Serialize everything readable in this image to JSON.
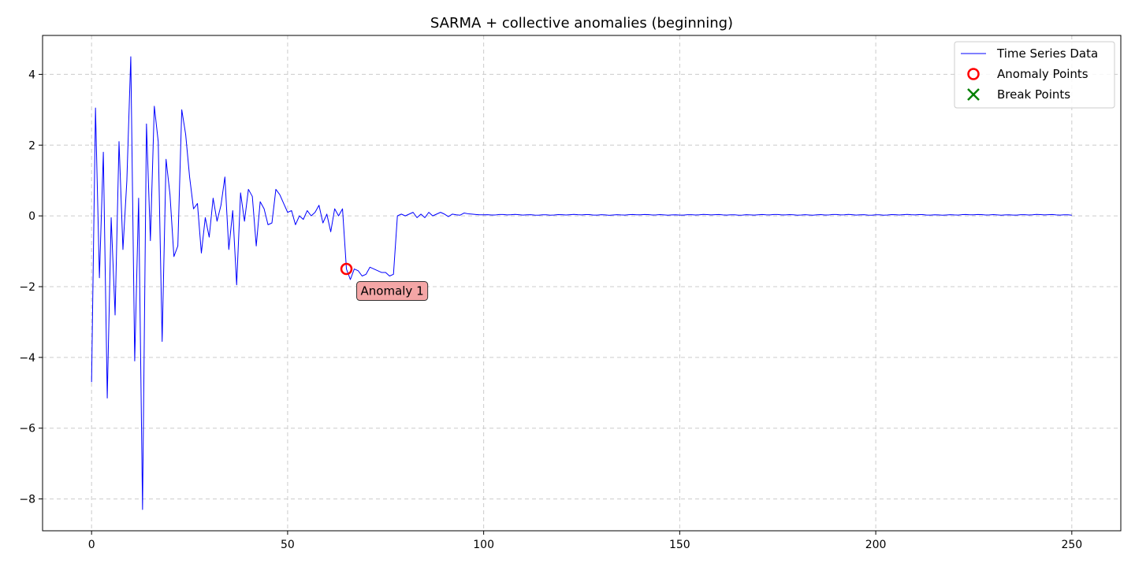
{
  "chart_data": {
    "type": "line",
    "title": "SARMA + collective anomalies (beginning)",
    "xlabel": "",
    "ylabel": "",
    "xlim": [
      -12.5,
      262.5
    ],
    "ylim": [
      -8.9,
      5.1
    ],
    "x_ticks": [
      0,
      50,
      100,
      150,
      200,
      250
    ],
    "y_ticks": [
      4,
      2,
      0,
      -2,
      -4,
      -6,
      -8
    ],
    "y_tick_labels": [
      "4",
      "2",
      "0",
      "−2",
      "−4",
      "−6",
      "−8"
    ],
    "grid": true,
    "legend_position": "top-right",
    "colors": {
      "series": "#0000ff",
      "anomaly": "#ff0000",
      "break": "#008000",
      "annotation_fill": "#f4a6a6"
    },
    "series": [
      {
        "name": "Time Series Data",
        "x_start": 0,
        "x_step": 1,
        "values": [
          -4.7,
          3.05,
          -1.75,
          1.8,
          -5.15,
          -0.05,
          -2.8,
          2.1,
          -0.95,
          1.0,
          4.5,
          -4.1,
          0.5,
          -8.3,
          2.6,
          -0.7,
          3.1,
          2.1,
          -3.55,
          1.6,
          0.6,
          -1.15,
          -0.85,
          3.0,
          2.3,
          1.1,
          0.2,
          0.35,
          -1.05,
          -0.05,
          -0.6,
          0.5,
          -0.15,
          0.3,
          1.1,
          -0.95,
          0.15,
          -1.95,
          0.65,
          -0.15,
          0.75,
          0.55,
          -0.85,
          0.4,
          0.2,
          -0.25,
          -0.2,
          0.75,
          0.6,
          0.35,
          0.1,
          0.15,
          -0.25,
          0.0,
          -0.1,
          0.15,
          0.0,
          0.1,
          0.3,
          -0.2,
          0.05,
          -0.45,
          0.2,
          0.0,
          0.2,
          -1.5,
          -1.8,
          -1.5,
          -1.55,
          -1.7,
          -1.65,
          -1.45,
          -1.5,
          -1.55,
          -1.6,
          -1.6,
          -1.7,
          -1.65,
          0.0,
          0.05,
          0.0,
          0.05,
          0.1,
          -0.05,
          0.05,
          -0.05,
          0.1,
          0.0,
          0.05,
          0.1,
          0.05,
          -0.02,
          0.05,
          0.03,
          0.02,
          0.08,
          0.06,
          0.05,
          0.04,
          0.03
        ],
        "tail": {
          "x_start": 100,
          "x_end": 250,
          "value": 0.03,
          "jitter": 0.012
        }
      }
    ],
    "anomaly_points": [
      {
        "x": 65,
        "y": -1.5,
        "label": "Anomaly 1"
      }
    ],
    "break_points": [],
    "annotation": {
      "text": "Anomaly 1",
      "x": 65,
      "y": -1.5
    },
    "legend": [
      {
        "label": "Time Series Data",
        "marker": "line"
      },
      {
        "label": "Anomaly Points",
        "marker": "circle"
      },
      {
        "label": "Break Points",
        "marker": "x"
      }
    ]
  }
}
